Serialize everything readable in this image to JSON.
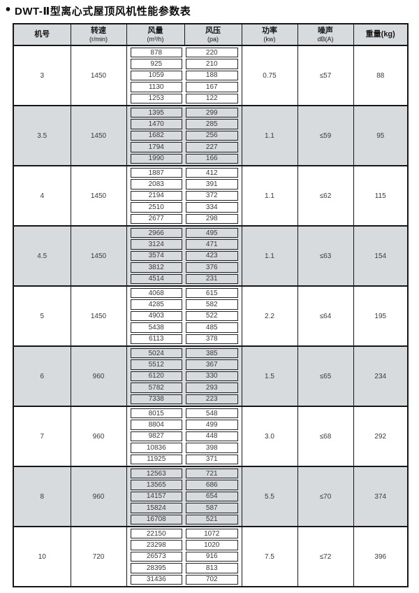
{
  "page": {
    "bullet": "•",
    "title": "DWT-Ⅱ型离心式屋顶风机性能参数表"
  },
  "table": {
    "headers": [
      {
        "label": "机号",
        "unit": ""
      },
      {
        "label": "转速",
        "unit": "(r/min)"
      },
      {
        "label": "风量",
        "unit": "(m³/h)"
      },
      {
        "label": "风压",
        "unit": "(pa)"
      },
      {
        "label": "功率",
        "unit": "(kw)"
      },
      {
        "label": "噪声",
        "unit": "dB(A)"
      },
      {
        "label": "重量(kg)",
        "unit": ""
      }
    ],
    "groups": [
      {
        "model": "3",
        "speed": "1450",
        "power": "0.75",
        "noise": "≤57",
        "weight": "88",
        "shaded": false,
        "rows": [
          [
            878,
            220
          ],
          [
            925,
            210
          ],
          [
            1059,
            188
          ],
          [
            1130,
            167
          ],
          [
            1253,
            122
          ]
        ]
      },
      {
        "model": "3.5",
        "speed": "1450",
        "power": "1.1",
        "noise": "≤59",
        "weight": "95",
        "shaded": true,
        "rows": [
          [
            1395,
            299
          ],
          [
            1470,
            285
          ],
          [
            1682,
            256
          ],
          [
            1794,
            227
          ],
          [
            1990,
            166
          ]
        ]
      },
      {
        "model": "4",
        "speed": "1450",
        "power": "1.1",
        "noise": "≤62",
        "weight": "115",
        "shaded": false,
        "rows": [
          [
            1887,
            412
          ],
          [
            2083,
            391
          ],
          [
            2194,
            372
          ],
          [
            2510,
            334
          ],
          [
            2677,
            298
          ]
        ]
      },
      {
        "model": "4.5",
        "speed": "1450",
        "power": "1.1",
        "noise": "≤63",
        "weight": "154",
        "shaded": true,
        "rows": [
          [
            2966,
            495
          ],
          [
            3124,
            471
          ],
          [
            3574,
            423
          ],
          [
            3812,
            376
          ],
          [
            4514,
            231
          ]
        ]
      },
      {
        "model": "5",
        "speed": "1450",
        "power": "2.2",
        "noise": "≤64",
        "weight": "195",
        "shaded": false,
        "rows": [
          [
            4068,
            615
          ],
          [
            4285,
            582
          ],
          [
            4903,
            522
          ],
          [
            5438,
            485
          ],
          [
            6113,
            378
          ]
        ]
      },
      {
        "model": "6",
        "speed": "960",
        "power": "1.5",
        "noise": "≤65",
        "weight": "234",
        "shaded": true,
        "rows": [
          [
            5024,
            385
          ],
          [
            5512,
            367
          ],
          [
            6120,
            330
          ],
          [
            5782,
            293
          ],
          [
            7338,
            223
          ]
        ]
      },
      {
        "model": "7",
        "speed": "960",
        "power": "3.0",
        "noise": "≤68",
        "weight": "292",
        "shaded": false,
        "rows": [
          [
            8015,
            548
          ],
          [
            8804,
            499
          ],
          [
            9827,
            448
          ],
          [
            10836,
            398
          ],
          [
            11925,
            371
          ]
        ]
      },
      {
        "model": "8",
        "speed": "960",
        "power": "5.5",
        "noise": "≤70",
        "weight": "374",
        "shaded": true,
        "rows": [
          [
            12563,
            721
          ],
          [
            13565,
            686
          ],
          [
            14157,
            654
          ],
          [
            15824,
            587
          ],
          [
            16708,
            521
          ]
        ]
      },
      {
        "model": "10",
        "speed": "720",
        "power": "7.5",
        "noise": "≤72",
        "weight": "396",
        "shaded": false,
        "rows": [
          [
            22150,
            1072
          ],
          [
            23298,
            1020
          ],
          [
            26573,
            916
          ],
          [
            28395,
            813
          ],
          [
            31436,
            702
          ]
        ]
      }
    ]
  }
}
